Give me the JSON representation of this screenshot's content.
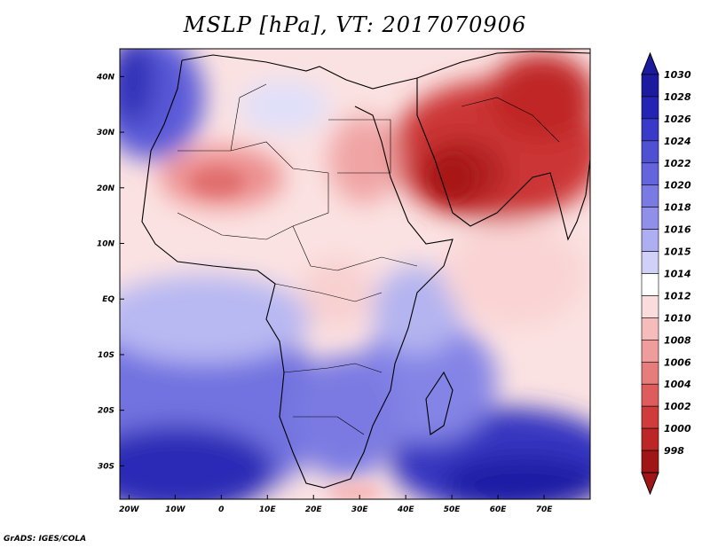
{
  "title": "MSLP [hPa], VT: 2017070906",
  "credit": "GrADS: IGES/COLA",
  "map": {
    "lon_range": [
      -22,
      80
    ],
    "lat_range": [
      -36,
      45
    ],
    "lat_ticks": [
      {
        "v": 40,
        "label": "40N"
      },
      {
        "v": 30,
        "label": "30N"
      },
      {
        "v": 20,
        "label": "20N"
      },
      {
        "v": 10,
        "label": "10N"
      },
      {
        "v": 0,
        "label": "EQ"
      },
      {
        "v": -10,
        "label": "10S"
      },
      {
        "v": -20,
        "label": "20S"
      },
      {
        "v": -30,
        "label": "30S"
      }
    ],
    "lon_ticks": [
      {
        "v": -20,
        "label": "20W"
      },
      {
        "v": -10,
        "label": "10W"
      },
      {
        "v": 0,
        "label": "0"
      },
      {
        "v": 10,
        "label": "10E"
      },
      {
        "v": 20,
        "label": "20E"
      },
      {
        "v": 30,
        "label": "30E"
      },
      {
        "v": 40,
        "label": "40E"
      },
      {
        "v": 50,
        "label": "50E"
      },
      {
        "v": 60,
        "label": "60E"
      },
      {
        "v": 70,
        "label": "70E"
      }
    ]
  },
  "colorbar": {
    "levels": [
      "1030",
      "1028",
      "1026",
      "1024",
      "1022",
      "1020",
      "1018",
      "1016",
      "1015",
      "1014",
      "1012",
      "1010",
      "1008",
      "1006",
      "1004",
      "1002",
      "1000",
      "998"
    ],
    "colors": [
      "#1c1a9e",
      "#2424b4",
      "#3a3ac8",
      "#5050d2",
      "#6464dc",
      "#7a7ae4",
      "#9090ea",
      "#aeaef2",
      "#d0d0f8",
      "#ffffff",
      "#fadcdc",
      "#f6bcbc",
      "#ee9c9c",
      "#e67c7c",
      "#de5c5c",
      "#d03c3c",
      "#bc2626",
      "#a01616"
    ]
  }
}
